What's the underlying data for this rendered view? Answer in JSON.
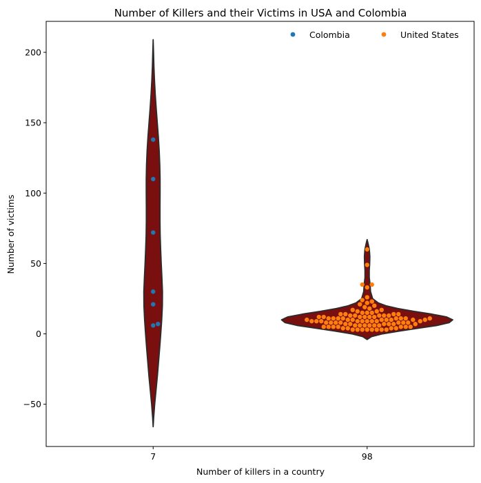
{
  "chart_data": {
    "type": "violin+swarm",
    "title": "Number of Killers and their Victims in USA and Colombia",
    "xlabel": "Number of killers in a country",
    "ylabel": "Number of victims",
    "categories": [
      "7",
      "98"
    ],
    "ylim": [
      -80,
      222
    ],
    "yticks": [
      -50,
      0,
      50,
      100,
      150,
      200
    ],
    "violin_color": "#7a0f0f",
    "violin_edge": "#2b2b2b",
    "violins": [
      {
        "category": "7",
        "max_width": 0.045,
        "profile": [
          [
            -66,
            0.0
          ],
          [
            -60,
            0.05
          ],
          [
            -50,
            0.16
          ],
          [
            -40,
            0.3
          ],
          [
            -30,
            0.44
          ],
          [
            -20,
            0.56
          ],
          [
            -10,
            0.68
          ],
          [
            0,
            0.79
          ],
          [
            10,
            0.89
          ],
          [
            20,
            0.96
          ],
          [
            30,
            0.97
          ],
          [
            40,
            0.91
          ],
          [
            50,
            0.84
          ],
          [
            60,
            0.78
          ],
          [
            70,
            0.73
          ],
          [
            80,
            0.71
          ],
          [
            90,
            0.71
          ],
          [
            100,
            0.72
          ],
          [
            110,
            0.72
          ],
          [
            120,
            0.69
          ],
          [
            130,
            0.63
          ],
          [
            140,
            0.54
          ],
          [
            150,
            0.43
          ],
          [
            160,
            0.32
          ],
          [
            170,
            0.22
          ],
          [
            180,
            0.14
          ],
          [
            190,
            0.08
          ],
          [
            200,
            0.04
          ],
          [
            209,
            0.0
          ]
        ]
      },
      {
        "category": "98",
        "max_width": 0.4,
        "profile": [
          [
            -4,
            0.0
          ],
          [
            -2,
            0.05
          ],
          [
            0,
            0.18
          ],
          [
            2,
            0.38
          ],
          [
            4,
            0.6
          ],
          [
            6,
            0.82
          ],
          [
            8,
            0.96
          ],
          [
            10,
            1.0
          ],
          [
            12,
            0.93
          ],
          [
            14,
            0.76
          ],
          [
            16,
            0.55
          ],
          [
            18,
            0.36
          ],
          [
            20,
            0.22
          ],
          [
            22,
            0.13
          ],
          [
            25,
            0.065
          ],
          [
            30,
            0.04
          ],
          [
            35,
            0.035
          ],
          [
            40,
            0.025
          ],
          [
            45,
            0.025
          ],
          [
            50,
            0.03
          ],
          [
            55,
            0.032
          ],
          [
            60,
            0.026
          ],
          [
            64,
            0.012
          ],
          [
            67,
            0.0
          ]
        ]
      }
    ],
    "series": [
      {
        "name": "Colombia",
        "color": "#1f77b4",
        "category": "7",
        "values": [
          138,
          110,
          72,
          30,
          21,
          7,
          6
        ]
      },
      {
        "name": "United States",
        "color": "#ff7f0e",
        "category": "98",
        "values": [
          60,
          49,
          35,
          35,
          33,
          26,
          24,
          23,
          22,
          21,
          20,
          19,
          18,
          17,
          17,
          16,
          16,
          15,
          15,
          15,
          14,
          14,
          14,
          14,
          13,
          13,
          13,
          13,
          13,
          12,
          12,
          12,
          12,
          12,
          12,
          11,
          11,
          11,
          11,
          11,
          11,
          11,
          11,
          10,
          10,
          10,
          10,
          10,
          10,
          10,
          10,
          9,
          9,
          9,
          9,
          9,
          9,
          9,
          9,
          9,
          8,
          8,
          8,
          8,
          8,
          8,
          8,
          7,
          7,
          7,
          7,
          7,
          7,
          6,
          6,
          6,
          6,
          6,
          6,
          5,
          5,
          5,
          5,
          5,
          5,
          5,
          4,
          4,
          4,
          4,
          3,
          3,
          3,
          3,
          3,
          3,
          3,
          3
        ]
      }
    ],
    "legend": {
      "placement": "top-right",
      "entries": [
        "Colombia",
        "United States"
      ]
    }
  }
}
